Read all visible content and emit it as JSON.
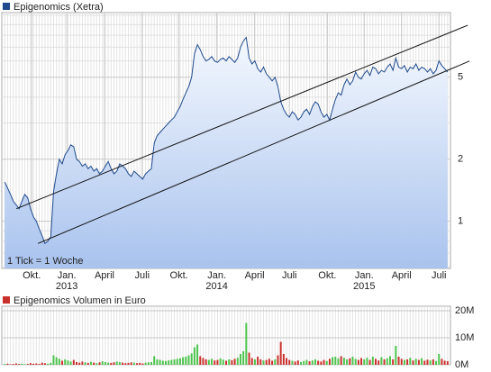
{
  "chart_data": [
    {
      "type": "area",
      "title": "Epigenomics (Xetra)",
      "note": "1 Tick = 1 Woche",
      "color": "#1f4a8c",
      "log_scale": true,
      "values": [
        1.55,
        1.45,
        1.35,
        1.25,
        1.2,
        1.15,
        1.25,
        1.35,
        1.3,
        1.15,
        1.05,
        1.0,
        0.92,
        0.85,
        0.78,
        0.8,
        0.84,
        1.4,
        1.7,
        2.0,
        1.9,
        2.1,
        2.2,
        2.35,
        2.3,
        2.0,
        1.95,
        1.85,
        1.9,
        1.8,
        1.85,
        1.75,
        1.8,
        1.7,
        1.75,
        1.85,
        1.95,
        1.8,
        1.7,
        1.75,
        1.9,
        1.85,
        1.8,
        1.7,
        1.65,
        1.75,
        1.7,
        1.65,
        1.6,
        1.7,
        1.75,
        1.8,
        2.4,
        2.6,
        2.7,
        2.8,
        2.9,
        3.0,
        3.1,
        3.2,
        3.4,
        3.6,
        3.9,
        4.2,
        4.5,
        5.0,
        6.5,
        7.2,
        6.8,
        6.3,
        6.0,
        6.1,
        6.3,
        6.0,
        5.9,
        6.1,
        6.2,
        6.0,
        6.3,
        6.1,
        5.9,
        6.2,
        7.0,
        7.5,
        7.8,
        6.2,
        5.8,
        6.0,
        5.5,
        5.3,
        5.6,
        5.2,
        5.0,
        4.8,
        5.0,
        4.5,
        3.8,
        3.5,
        3.3,
        3.2,
        3.4,
        3.3,
        3.1,
        3.2,
        3.4,
        3.5,
        3.3,
        3.6,
        3.8,
        3.7,
        3.4,
        3.2,
        3.3,
        3.1,
        3.5,
        3.9,
        4.2,
        4.1,
        4.6,
        4.9,
        4.6,
        4.8,
        5.3,
        5.0,
        4.9,
        5.2,
        5.4,
        5.1,
        5.6,
        5.5,
        5.2,
        5.4,
        5.3,
        5.6,
        5.8,
        5.4,
        6.2,
        5.6,
        5.5,
        5.7,
        5.3,
        5.6,
        5.5,
        5.8,
        5.4,
        5.6,
        5.5,
        5.3,
        5.5,
        5.2,
        5.4,
        6.0,
        5.7,
        5.5,
        5.3
      ],
      "xlim": [
        -1,
        155
      ],
      "ylim": [
        0.59,
        10.3
      ],
      "yticks": [
        1,
        2,
        5
      ],
      "yminor": [
        0.6,
        0.7,
        0.8,
        0.9,
        3,
        4,
        6,
        7,
        8,
        9,
        10
      ],
      "xticks": [
        {
          "value": 9.4,
          "label": "Okt."
        },
        {
          "value": 21.6,
          "label": "Jan."
        },
        {
          "value": 34.7,
          "label": "April"
        },
        {
          "value": 47.8,
          "label": "Juli"
        },
        {
          "value": 60.6,
          "label": "Okt."
        },
        {
          "value": 73.75,
          "label": "Jan."
        },
        {
          "value": 86.9,
          "label": "April"
        },
        {
          "value": 99,
          "label": "Juli"
        },
        {
          "value": 112.2,
          "label": "Okt."
        },
        {
          "value": 125,
          "label": "Jan."
        },
        {
          "value": 138,
          "label": "April"
        },
        {
          "value": 151,
          "label": "Juli"
        }
      ],
      "xyears": [
        {
          "value": 21.6,
          "label": "2013"
        },
        {
          "value": 73.75,
          "label": "2014"
        },
        {
          "value": 125,
          "label": "2015"
        }
      ],
      "trend_lines": [
        {
          "x": [
            4.1,
            161
          ],
          "values": [
            1.15,
            8.94
          ]
        },
        {
          "x": [
            11.6,
            161.6
          ],
          "values": [
            0.78,
            5.99
          ]
        }
      ]
    },
    {
      "type": "bar",
      "title": "Epigenomics Volumen in Euro",
      "up_color": "#4cc24c",
      "down_color": "#c9302c",
      "values": [
        300000,
        400000,
        200000,
        300000,
        500000,
        300000,
        400000,
        200000,
        300000,
        600000,
        400000,
        500000,
        300000,
        800000,
        600000,
        400000,
        700000,
        3500000,
        2800000,
        2200000,
        1500000,
        2000000,
        1600000,
        1200000,
        1800000,
        1000000,
        800000,
        1200000,
        900000,
        700000,
        1100000,
        800000,
        600000,
        900000,
        1300000,
        1000000,
        800000,
        700000,
        900000,
        1200000,
        1000000,
        800000,
        600000,
        700000,
        900000,
        800000,
        600000,
        700000,
        500000,
        800000,
        900000,
        1000000,
        3200000,
        2000000,
        1800000,
        1500000,
        1400000,
        1600000,
        1800000,
        2000000,
        2200000,
        2400000,
        2800000,
        3000000,
        3500000,
        4200000,
        6500000,
        7500000,
        3200000,
        2500000,
        2000000,
        1800000,
        2200000,
        1600000,
        1800000,
        2400000,
        1900000,
        1500000,
        2000000,
        1700000,
        2200000,
        2600000,
        4000000,
        5000000,
        15500000,
        4500000,
        2500000,
        2000000,
        3000000,
        2000000,
        1600000,
        1800000,
        2200000,
        1500000,
        2000000,
        3500000,
        8500000,
        4000000,
        2500000,
        1800000,
        1500000,
        1200000,
        1600000,
        1000000,
        1400000,
        1800000,
        1300000,
        1600000,
        2000000,
        1500000,
        1200000,
        1800000,
        1400000,
        2200000,
        2800000,
        3000000,
        2400000,
        3200000,
        2600000,
        2000000,
        2400000,
        3000000,
        2200000,
        1800000,
        2500000,
        2000000,
        2600000,
        1800000,
        3000000,
        2200000,
        1600000,
        2800000,
        2000000,
        2400000,
        3200000,
        2000000,
        7000000,
        3000000,
        2200000,
        1800000,
        2000000,
        2600000,
        1600000,
        2200000,
        1800000,
        2400000,
        1500000,
        1900000,
        1600000,
        2000000,
        1400000,
        4000000,
        2200000,
        1500000,
        1300000
      ],
      "ylim": [
        0,
        20000000
      ],
      "yticks": [
        {
          "value": 0,
          "label": "0M"
        },
        {
          "value": 10000000,
          "label": "10M"
        },
        {
          "value": 20000000,
          "label": "20M"
        }
      ]
    }
  ]
}
